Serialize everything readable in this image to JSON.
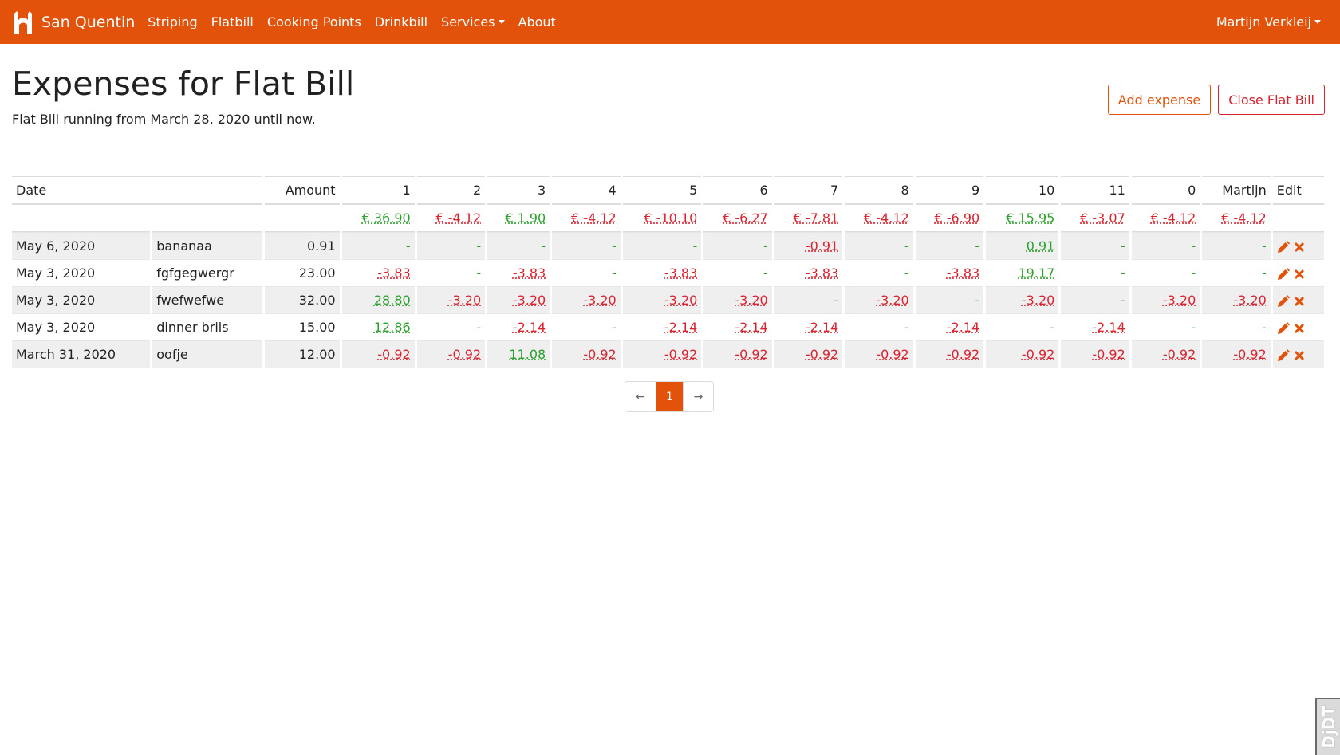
{
  "navbar": {
    "brand": "San Quentin",
    "links": [
      "Striping",
      "Flatbill",
      "Cooking Points",
      "Drinkbill"
    ],
    "services": "Services",
    "about": "About",
    "user": "Martijn Verkleij"
  },
  "header": {
    "title": "Expenses for Flat Bill",
    "subtitle": "Flat Bill running from March 28, 2020 until now.",
    "add_button": "Add expense",
    "close_button": "Close Flat Bill"
  },
  "table": {
    "headers": {
      "date": "Date",
      "amount": "Amount",
      "members": [
        "1",
        "2",
        "3",
        "4",
        "5",
        "6",
        "7",
        "8",
        "9",
        "10",
        "11",
        "0",
        "Martijn"
      ],
      "edit": "Edit"
    },
    "totals": [
      {
        "text": "€ 36.90",
        "sign": "pos"
      },
      {
        "text": "€ -4.12",
        "sign": "neg"
      },
      {
        "text": "€ 1.90",
        "sign": "pos"
      },
      {
        "text": "€ -4.12",
        "sign": "neg"
      },
      {
        "text": "€ -10.10",
        "sign": "neg"
      },
      {
        "text": "€ -6.27",
        "sign": "neg"
      },
      {
        "text": "€ -7.81",
        "sign": "neg"
      },
      {
        "text": "€ -4.12",
        "sign": "neg"
      },
      {
        "text": "€ -6.90",
        "sign": "neg"
      },
      {
        "text": "€ 15.95",
        "sign": "pos"
      },
      {
        "text": "€ -3.07",
        "sign": "neg"
      },
      {
        "text": "€ -4.12",
        "sign": "neg"
      },
      {
        "text": "€ -4.12",
        "sign": "neg"
      }
    ],
    "rows": [
      {
        "date": "May 6, 2020",
        "description": "bananaa",
        "amount": "0.91",
        "shares": [
          "-",
          "-",
          "-",
          "-",
          "-",
          "-",
          "-0.91",
          "-",
          "-",
          "0.91",
          "-",
          "-",
          "-"
        ]
      },
      {
        "date": "May 3, 2020",
        "description": "fgfgegwergr",
        "amount": "23.00",
        "shares": [
          "-3.83",
          "-",
          "-3.83",
          "-",
          "-3.83",
          "-",
          "-3.83",
          "-",
          "-3.83",
          "19.17",
          "-",
          "-",
          "-"
        ]
      },
      {
        "date": "May 3, 2020",
        "description": "fwefwefwe",
        "amount": "32.00",
        "shares": [
          "28.80",
          "-3.20",
          "-3.20",
          "-3.20",
          "-3.20",
          "-3.20",
          "-",
          "-3.20",
          "-",
          "-3.20",
          "-",
          "-3.20",
          "-3.20"
        ]
      },
      {
        "date": "May 3, 2020",
        "description": "dinner briis",
        "amount": "15.00",
        "shares": [
          "12.86",
          "-",
          "-2.14",
          "-",
          "-2.14",
          "-2.14",
          "-2.14",
          "-",
          "-2.14",
          "-",
          "-2.14",
          "-",
          "-"
        ]
      },
      {
        "date": "March 31, 2020",
        "description": "oofje",
        "amount": "12.00",
        "shares": [
          "-0.92",
          "-0.92",
          "11.08",
          "-0.92",
          "-0.92",
          "-0.92",
          "-0.92",
          "-0.92",
          "-0.92",
          "-0.92",
          "-0.92",
          "-0.92",
          "-0.92"
        ]
      }
    ]
  },
  "pagination": {
    "prev": "←",
    "current": "1",
    "next": "→"
  },
  "debug_toolbar": "DjDT",
  "colors": {
    "brand": "#e2520a",
    "positive": "#2ca02c",
    "negative": "#d9232f"
  }
}
